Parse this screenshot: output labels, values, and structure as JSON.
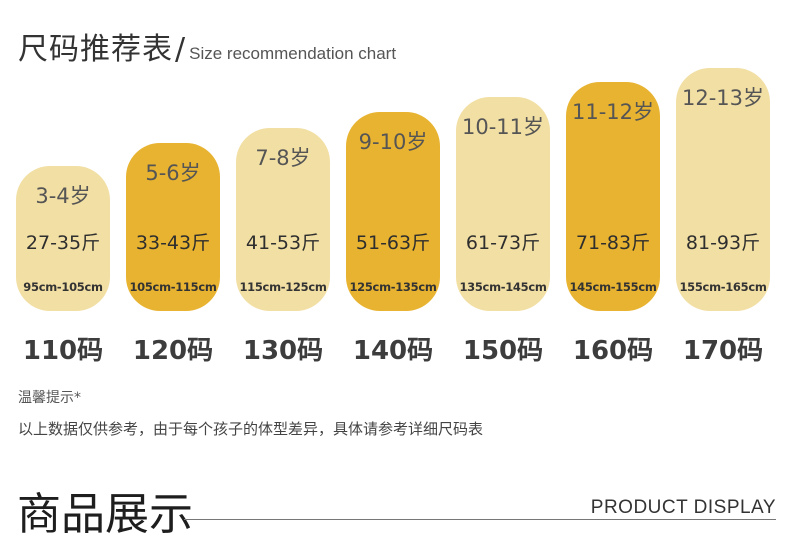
{
  "header": {
    "title_cn": "尺码推荐表",
    "separator": "/",
    "title_en": "Size recommendation chart"
  },
  "sizes": [
    {
      "age": "3-4岁",
      "weight": "27-35斤",
      "height": "95cm-105cm",
      "label": "110码",
      "highlight": false
    },
    {
      "age": "5-6岁",
      "weight": "33-43斤",
      "height": "105cm-115cm",
      "label": "120码",
      "highlight": true
    },
    {
      "age": "7-8岁",
      "weight": "41-53斤",
      "height": "115cm-125cm",
      "label": "130码",
      "highlight": false
    },
    {
      "age": "9-10岁",
      "weight": "51-63斤",
      "height": "125cm-135cm",
      "label": "140码",
      "highlight": true
    },
    {
      "age": "10-11岁",
      "weight": "61-73斤",
      "height": "135cm-145cm",
      "label": "150码",
      "highlight": false
    },
    {
      "age": "11-12岁",
      "weight": "71-83斤",
      "height": "145cm-155cm",
      "label": "160码",
      "highlight": true
    },
    {
      "age": "12-13岁",
      "weight": "81-93斤",
      "height": "155cm-165cm",
      "label": "170码",
      "highlight": false
    }
  ],
  "colors": {
    "pill_light": "#f2dfa4",
    "pill_dark": "#e8b330"
  },
  "tips": {
    "title": "温馨提示*",
    "text": "以上数据仅供参考，由于每个孩子的体型差异，具体请参考详细尺码表"
  },
  "section": {
    "title_cn": "商品展示",
    "title_en": "PRODUCT DISPLAY"
  }
}
